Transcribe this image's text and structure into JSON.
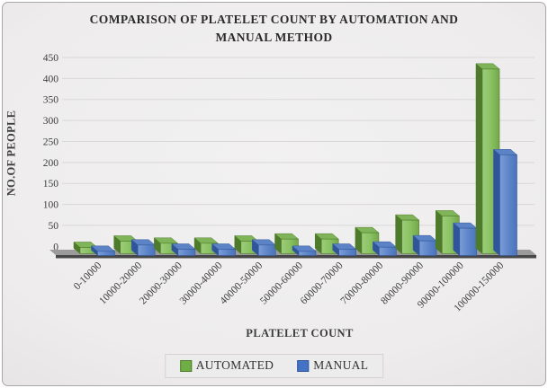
{
  "chart_data": {
    "type": "bar",
    "style": "3d-clustered-column",
    "title": "COMPARISON OF PLATELET COUNT BY AUTOMATION AND MANUAL METHOD",
    "xlabel": "PLATELET COUNT",
    "ylabel": "NO.OF PEOPLE",
    "categories": [
      "0-10000",
      "10000-20000",
      "20000-30000",
      "30000-40000",
      "40000-50000",
      "50000-60000",
      "60000-70000",
      "70000-80000",
      "80000-90000",
      "90000-100000",
      "100000-150000"
    ],
    "series": [
      {
        "name": "AUTOMATED",
        "color": "#6FAE44",
        "border": "#4E7B2B",
        "values": [
          15,
          30,
          25,
          25,
          30,
          35,
          35,
          50,
          80,
          90,
          440
        ]
      },
      {
        "name": "MANUAL",
        "color": "#4472C4",
        "border": "#30559A",
        "values": [
          10,
          25,
          15,
          15,
          25,
          10,
          15,
          20,
          35,
          65,
          240
        ]
      }
    ],
    "ylim": [
      0,
      450
    ],
    "ytick_step": 50,
    "grid": true,
    "legend_position": "bottom"
  },
  "colors": {
    "background_center": "#F2F1F1",
    "background_edge": "#BDBBBB",
    "gridline": "#D9D7D7",
    "floor_top": "#9B9B9B",
    "floor_front": "#474747",
    "axis_text": "#3D3D3D",
    "title_text": "#2B2B2B",
    "legend_background": "#ECECEC"
  }
}
